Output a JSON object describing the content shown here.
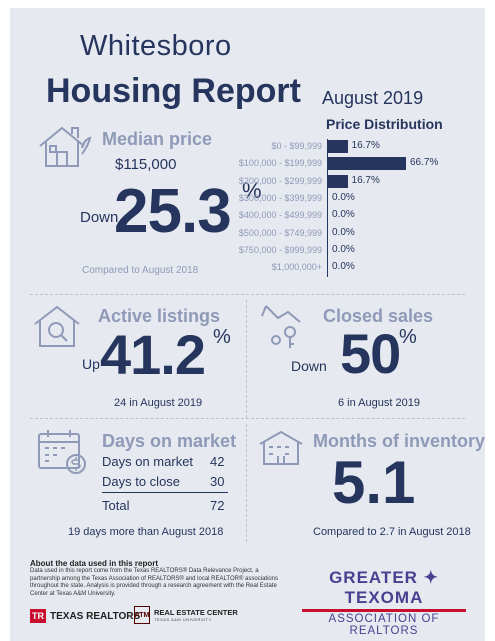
{
  "header": {
    "city": "Whitesboro",
    "title": "Housing Report",
    "month": "August 2019"
  },
  "median": {
    "heading": "Median price",
    "value": "$115,000",
    "direction": "Down",
    "change": "25.3",
    "unit": "%",
    "compare": "Compared to August 2018"
  },
  "distribution": {
    "title": "Price Distribution"
  },
  "chart_data": {
    "type": "bar",
    "title": "Price Distribution",
    "orientation": "horizontal",
    "categories": [
      "$0 - $99,999",
      "$100,000 - $199,999",
      "$200,000 - $299,999",
      "$300,000 - $399,999",
      "$400,000 - $499,999",
      "$500,000 - $749,999",
      "$750,000 - $999,999",
      "$1,000,000+"
    ],
    "values": [
      16.7,
      66.7,
      16.7,
      0.0,
      0.0,
      0.0,
      0.0,
      0.0
    ],
    "value_labels": [
      "16.7%",
      "66.7%",
      "16.7%",
      "0.0%",
      "0.0%",
      "0.0%",
      "0.0%",
      "0.0%"
    ],
    "xlim": [
      0,
      66.7
    ],
    "color": "#26355e"
  },
  "active": {
    "heading": "Active listings",
    "direction": "Up",
    "change": "41.2",
    "unit": "%",
    "note": "24 in August 2019"
  },
  "closed": {
    "heading": "Closed sales",
    "direction": "Down",
    "change": "50",
    "unit": "%",
    "note": "6 in August 2019"
  },
  "days": {
    "heading": "Days on market",
    "rows": [
      {
        "label": "Days on market",
        "value": "42"
      },
      {
        "label": "Days to close",
        "value": "30"
      }
    ],
    "total_label": "Total",
    "total_value": "72",
    "note": "19 days more than August 2018"
  },
  "inventory": {
    "heading": "Months of inventory",
    "value": "5.1",
    "note": "Compared to 2.7 in August 2018"
  },
  "footer": {
    "about_heading": "About the data used in this report",
    "about_text": "Data used in this report come from the Texas REALTORS® Data Relevance Project, a partnership among the Texas Association of REALTORS® and local REALTOR® associations throughout the state. Analysis is provided through a research agreement with the Real Estate Center at Texas A&M University.",
    "tr_mark": "TR",
    "tr_text": "TEXAS REALTORS",
    "atm_mark": "ATM",
    "rec_text": "REAL ESTATE CENTER",
    "rec_sub": "TEXAS A&M UNIVERSITY",
    "assoc_line1": "GREATER ✦ TEXOMA",
    "assoc_line2": "ASSOCIATION OF REALTORS"
  },
  "colors": {
    "navy": "#26355e",
    "muted": "#8f9ab8",
    "background": "#e6e9ef",
    "association_purple": "#4a3f91",
    "association_red": "#c8102e"
  }
}
